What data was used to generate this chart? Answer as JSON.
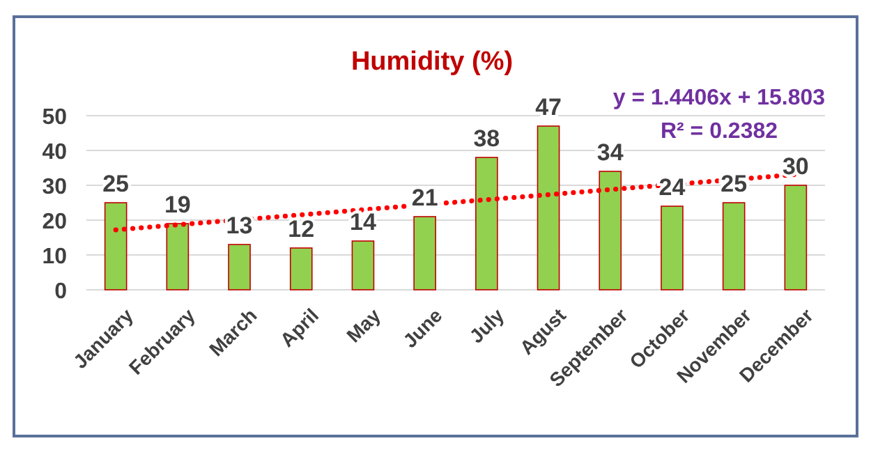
{
  "chart_data": {
    "type": "bar",
    "title": "Humidity (%)",
    "categories": [
      "January",
      "February",
      "March",
      "April",
      "May",
      "June",
      "July",
      "Agust",
      "September",
      "October",
      "November",
      "December"
    ],
    "series": [
      {
        "color": "#92d050",
        "values": [
          25,
          19,
          13,
          12,
          14,
          21,
          38,
          47,
          34,
          24,
          25,
          30
        ],
        "value_labels": [
          "25",
          "19",
          "13",
          "12",
          "14",
          "21",
          "38",
          "47",
          "34",
          "24",
          "25",
          "30"
        ]
      },
      {
        "type": "line",
        "color": "#ff0000",
        "x": [
          "January",
          "December"
        ],
        "values": [
          17.2,
          33.1
        ],
        "line_style": "dotted"
      }
    ],
    "annotations": [
      "y = 1.4406x + 15.803",
      "R² = 0.2382"
    ],
    "ylim": [
      0,
      50
    ],
    "yticks": [
      0,
      10,
      20,
      30,
      40,
      50
    ],
    "grid": "y"
  }
}
